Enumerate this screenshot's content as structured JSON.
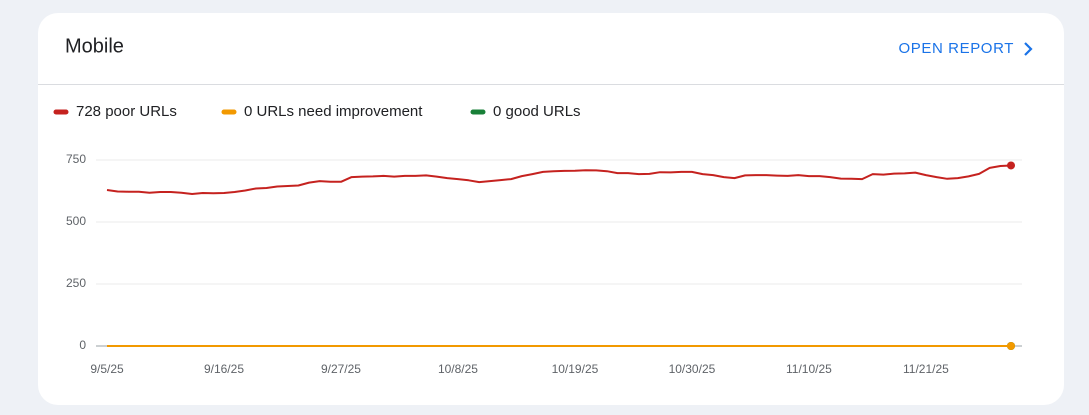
{
  "card": {
    "title": "Mobile",
    "action": "OPEN REPORT"
  },
  "chart_data": {
    "type": "line",
    "categories": [
      "9/5/25",
      null,
      null,
      null,
      null,
      null,
      null,
      null,
      null,
      null,
      null,
      "9/16/25",
      null,
      null,
      null,
      null,
      null,
      null,
      null,
      null,
      null,
      null,
      "9/27/25",
      null,
      null,
      null,
      null,
      null,
      null,
      null,
      null,
      null,
      null,
      "10/8/25",
      null,
      null,
      null,
      null,
      null,
      null,
      null,
      null,
      null,
      null,
      "10/19/25",
      null,
      null,
      null,
      null,
      null,
      null,
      null,
      null,
      null,
      null,
      "10/30/25",
      null,
      null,
      null,
      null,
      null,
      null,
      null,
      null,
      null,
      null,
      "11/10/25",
      null,
      null,
      null,
      null,
      null,
      null,
      null,
      null,
      null,
      null,
      "11/21/25",
      null,
      null,
      null,
      null,
      null,
      null,
      null,
      null
    ],
    "series": [
      {
        "name": "728 poor URLs",
        "color": "#c5221f",
        "values": [
          629,
          623,
          622,
          622,
          618,
          621,
          621,
          618,
          613,
          617,
          616,
          617,
          621,
          627,
          635,
          637,
          643,
          645,
          647,
          659,
          665,
          662,
          662,
          681,
          683,
          684,
          686,
          683,
          686,
          686,
          688,
          683,
          677,
          673,
          668,
          661,
          665,
          669,
          673,
          685,
          693,
          702,
          705,
          706,
          707,
          709,
          708,
          705,
          697,
          697,
          693,
          694,
          701,
          700,
          702,
          702,
          693,
          689,
          681,
          677,
          688,
          689,
          689,
          687,
          686,
          689,
          685,
          685,
          681,
          675,
          674,
          673,
          693,
          691,
          695,
          696,
          699,
          689,
          681,
          674,
          677,
          684,
          694,
          718,
          726,
          728
        ]
      },
      {
        "name": "0 URLs need improvement",
        "color": "#f29900",
        "values": [
          0,
          0,
          0,
          0,
          0,
          0,
          0,
          0,
          0,
          0,
          0,
          0,
          0,
          0,
          0,
          0,
          0,
          0,
          0,
          0,
          0,
          0,
          0,
          0,
          0,
          0,
          0,
          0,
          0,
          0,
          0,
          0,
          0,
          0,
          0,
          0,
          0,
          0,
          0,
          0,
          0,
          0,
          0,
          0,
          0,
          0,
          0,
          0,
          0,
          0,
          0,
          0,
          0,
          0,
          0,
          0,
          0,
          0,
          0,
          0,
          0,
          0,
          0,
          0,
          0,
          0,
          0,
          0,
          0,
          0,
          0,
          0,
          0,
          0,
          0,
          0,
          0,
          0,
          0,
          0,
          0,
          0,
          0,
          0,
          0,
          0
        ]
      },
      {
        "name": "0 good URLs",
        "color": "#188038",
        "values": [
          0,
          0,
          0,
          0,
          0,
          0,
          0,
          0,
          0,
          0,
          0,
          0,
          0,
          0,
          0,
          0,
          0,
          0,
          0,
          0,
          0,
          0,
          0,
          0,
          0,
          0,
          0,
          0,
          0,
          0,
          0,
          0,
          0,
          0,
          0,
          0,
          0,
          0,
          0,
          0,
          0,
          0,
          0,
          0,
          0,
          0,
          0,
          0,
          0,
          0,
          0,
          0,
          0,
          0,
          0,
          0,
          0,
          0,
          0,
          0,
          0,
          0,
          0,
          0,
          0,
          0,
          0,
          0,
          0,
          0,
          0,
          0,
          0,
          0,
          0,
          0,
          0,
          0,
          0,
          0,
          0,
          0,
          0,
          0,
          0,
          0
        ]
      }
    ],
    "ylim": [
      0,
      750
    ],
    "yticks": [
      0,
      250,
      500,
      750
    ],
    "grid": true
  }
}
